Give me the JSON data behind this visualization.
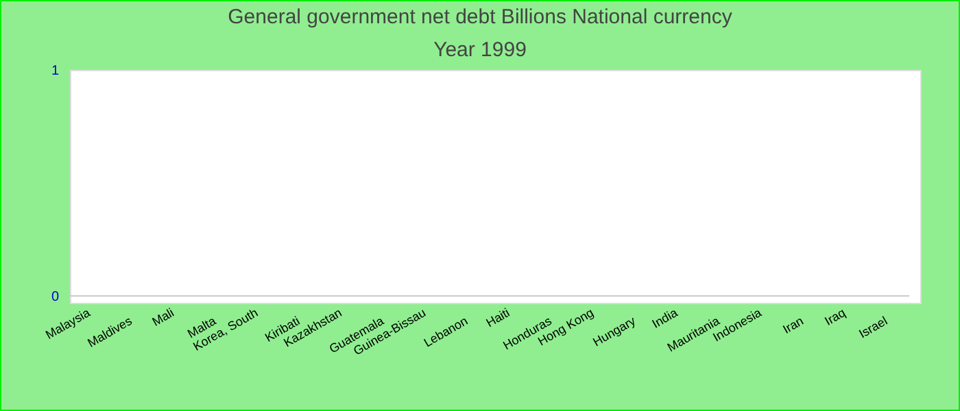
{
  "chart_data": {
    "type": "bar",
    "title": "General government net debt Billions National currency",
    "subtitle": "Year 1999",
    "categories": [
      "Malaysia",
      "Maldives",
      "Mali",
      "Malta",
      "Korea, South",
      "Kiribati",
      "Kazakhstan",
      "Guatemala",
      "Guinea-Bissau",
      "Lebanon",
      "Haiti",
      "Honduras",
      "Hong Kong",
      "Hungary",
      "India",
      "Mauritania",
      "Indonesia",
      "Iran",
      "Iraq",
      "Israel"
    ],
    "values": [
      0,
      0,
      0,
      0,
      0,
      0,
      0,
      0,
      0,
      0,
      0,
      0,
      0,
      0,
      0,
      0,
      0,
      0,
      0,
      0
    ],
    "ylim": [
      0,
      1
    ],
    "yticks": [
      0,
      1
    ],
    "grid": false,
    "legend": false
  }
}
